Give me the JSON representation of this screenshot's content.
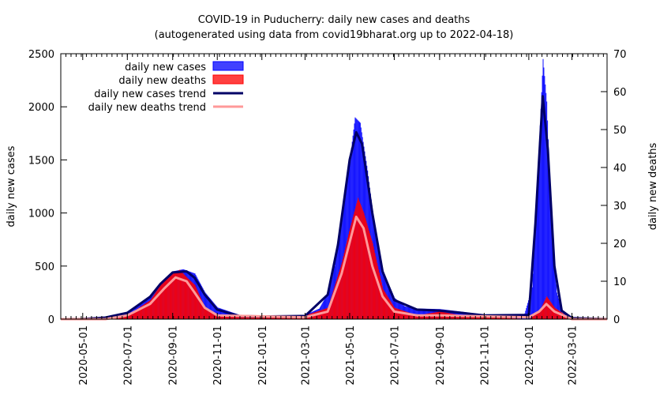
{
  "chart_data": {
    "type": "bar",
    "title": "COVID-19 in Puducherry: daily new cases and deaths",
    "subtitle": "(autogenerated using data from covid19bharat.org up to 2022-04-18)",
    "ylabel": "daily new cases",
    "y2label": "daily new deaths",
    "ylim": [
      0,
      2500
    ],
    "y2lim": [
      0,
      70
    ],
    "xlim": [
      "2020-04-01",
      "2022-04-18"
    ],
    "yticks": [
      "0",
      "500",
      "1000",
      "1500",
      "2000",
      "2500"
    ],
    "y2ticks": [
      "0",
      "10",
      "20",
      "30",
      "40",
      "50",
      "60",
      "70"
    ],
    "xticks": [
      "2020-05-01",
      "2020-07-01",
      "2020-09-01",
      "2020-11-01",
      "2021-01-01",
      "2021-03-01",
      "2021-05-01",
      "2021-07-01",
      "2021-09-01",
      "2021-11-01",
      "2022-01-01",
      "2022-03-01"
    ],
    "grid": false,
    "legend_position": "top-left",
    "legend": [
      {
        "label": "daily new cases",
        "kind": "box",
        "color": "#0000ff"
      },
      {
        "label": "daily new deaths",
        "kind": "box",
        "color": "#ff0000"
      },
      {
        "label": "daily new cases trend",
        "kind": "line",
        "color": "#000066"
      },
      {
        "label": "daily new deaths trend",
        "kind": "line",
        "color": "#ff9999"
      }
    ],
    "series": [
      {
        "name": "daily new cases",
        "axis": "y",
        "color": "#0000ff",
        "points": [
          [
            "2020-04-01",
            0
          ],
          [
            "2020-05-01",
            2
          ],
          [
            "2020-06-01",
            15
          ],
          [
            "2020-06-20",
            40
          ],
          [
            "2020-07-01",
            70
          ],
          [
            "2020-07-15",
            130
          ],
          [
            "2020-08-01",
            220
          ],
          [
            "2020-08-15",
            320
          ],
          [
            "2020-09-01",
            450
          ],
          [
            "2020-09-15",
            470
          ],
          [
            "2020-10-01",
            430
          ],
          [
            "2020-10-15",
            250
          ],
          [
            "2020-11-01",
            110
          ],
          [
            "2020-12-01",
            40
          ],
          [
            "2021-01-01",
            30
          ],
          [
            "2021-02-01",
            20
          ],
          [
            "2021-03-01",
            40
          ],
          [
            "2021-03-20",
            100
          ],
          [
            "2021-04-01",
            250
          ],
          [
            "2021-04-10",
            500
          ],
          [
            "2021-04-20",
            1000
          ],
          [
            "2021-05-01",
            1500
          ],
          [
            "2021-05-08",
            1900
          ],
          [
            "2021-05-15",
            1850
          ],
          [
            "2021-05-25",
            1400
          ],
          [
            "2021-06-05",
            800
          ],
          [
            "2021-06-15",
            450
          ],
          [
            "2021-07-01",
            200
          ],
          [
            "2021-07-15",
            120
          ],
          [
            "2021-08-01",
            100
          ],
          [
            "2021-09-01",
            95
          ],
          [
            "2021-10-01",
            70
          ],
          [
            "2021-11-01",
            40
          ],
          [
            "2021-12-01",
            20
          ],
          [
            "2021-12-25",
            30
          ],
          [
            "2022-01-05",
            300
          ],
          [
            "2022-01-12",
            1200
          ],
          [
            "2022-01-20",
            2450
          ],
          [
            "2022-01-25",
            2050
          ],
          [
            "2022-02-01",
            800
          ],
          [
            "2022-02-08",
            250
          ],
          [
            "2022-02-15",
            60
          ],
          [
            "2022-03-01",
            10
          ],
          [
            "2022-04-18",
            1
          ]
        ]
      },
      {
        "name": "daily new deaths",
        "axis": "y2",
        "color": "#ff0000",
        "points": [
          [
            "2020-04-01",
            0
          ],
          [
            "2020-06-01",
            0
          ],
          [
            "2020-07-01",
            1
          ],
          [
            "2020-08-01",
            5
          ],
          [
            "2020-08-15",
            9
          ],
          [
            "2020-09-01",
            12
          ],
          [
            "2020-09-10",
            13
          ],
          [
            "2020-09-20",
            11
          ],
          [
            "2020-10-01",
            9
          ],
          [
            "2020-10-15",
            3
          ],
          [
            "2020-11-01",
            1
          ],
          [
            "2020-12-01",
            1
          ],
          [
            "2021-03-01",
            1
          ],
          [
            "2021-04-01",
            3
          ],
          [
            "2021-04-20",
            15
          ],
          [
            "2021-05-01",
            24
          ],
          [
            "2021-05-12",
            32
          ],
          [
            "2021-05-20",
            28
          ],
          [
            "2021-06-01",
            20
          ],
          [
            "2021-06-15",
            8
          ],
          [
            "2021-07-01",
            3
          ],
          [
            "2021-08-01",
            1
          ],
          [
            "2021-09-01",
            2
          ],
          [
            "2021-10-01",
            1
          ],
          [
            "2022-01-01",
            0
          ],
          [
            "2022-01-15",
            2
          ],
          [
            "2022-01-25",
            6
          ],
          [
            "2022-02-05",
            3
          ],
          [
            "2022-02-20",
            1
          ],
          [
            "2022-03-01",
            0
          ],
          [
            "2022-04-18",
            0
          ]
        ]
      },
      {
        "name": "daily new cases trend",
        "axis": "y",
        "color": "#000066",
        "points": [
          [
            "2020-04-01",
            0
          ],
          [
            "2020-05-01",
            2
          ],
          [
            "2020-06-01",
            15
          ],
          [
            "2020-07-01",
            60
          ],
          [
            "2020-08-01",
            210
          ],
          [
            "2020-08-15",
            330
          ],
          [
            "2020-09-01",
            440
          ],
          [
            "2020-09-20",
            450
          ],
          [
            "2020-10-01",
            390
          ],
          [
            "2020-10-15",
            230
          ],
          [
            "2020-11-01",
            90
          ],
          [
            "2020-12-01",
            30
          ],
          [
            "2021-01-01",
            25
          ],
          [
            "2021-03-01",
            30
          ],
          [
            "2021-04-01",
            230
          ],
          [
            "2021-04-15",
            700
          ],
          [
            "2021-05-01",
            1500
          ],
          [
            "2021-05-10",
            1760
          ],
          [
            "2021-05-18",
            1650
          ],
          [
            "2021-06-01",
            1000
          ],
          [
            "2021-06-15",
            450
          ],
          [
            "2021-07-01",
            180
          ],
          [
            "2021-08-01",
            90
          ],
          [
            "2021-09-01",
            80
          ],
          [
            "2021-10-01",
            60
          ],
          [
            "2021-11-01",
            35
          ],
          [
            "2022-01-01",
            40
          ],
          [
            "2022-01-10",
            900
          ],
          [
            "2022-01-20",
            2100
          ],
          [
            "2022-01-27",
            1600
          ],
          [
            "2022-02-05",
            500
          ],
          [
            "2022-02-15",
            80
          ],
          [
            "2022-03-01",
            10
          ],
          [
            "2022-04-18",
            1
          ]
        ]
      },
      {
        "name": "daily new deaths trend",
        "axis": "y2",
        "color": "#ff9999",
        "points": [
          [
            "2020-04-01",
            0
          ],
          [
            "2020-06-01",
            0
          ],
          [
            "2020-07-01",
            1
          ],
          [
            "2020-08-01",
            4
          ],
          [
            "2020-08-20",
            8
          ],
          [
            "2020-09-05",
            11
          ],
          [
            "2020-09-20",
            10
          ],
          [
            "2020-10-01",
            7
          ],
          [
            "2020-10-15",
            3
          ],
          [
            "2020-11-01",
            1
          ],
          [
            "2021-03-01",
            0.5
          ],
          [
            "2021-04-01",
            2
          ],
          [
            "2021-04-20",
            12
          ],
          [
            "2021-05-10",
            27
          ],
          [
            "2021-05-20",
            24
          ],
          [
            "2021-06-01",
            14
          ],
          [
            "2021-06-15",
            6
          ],
          [
            "2021-07-01",
            2
          ],
          [
            "2021-08-01",
            1
          ],
          [
            "2021-09-01",
            1
          ],
          [
            "2022-01-01",
            0.5
          ],
          [
            "2022-01-15",
            2
          ],
          [
            "2022-01-25",
            4
          ],
          [
            "2022-02-05",
            2
          ],
          [
            "2022-03-01",
            0
          ],
          [
            "2022-04-18",
            0
          ]
        ]
      }
    ]
  }
}
